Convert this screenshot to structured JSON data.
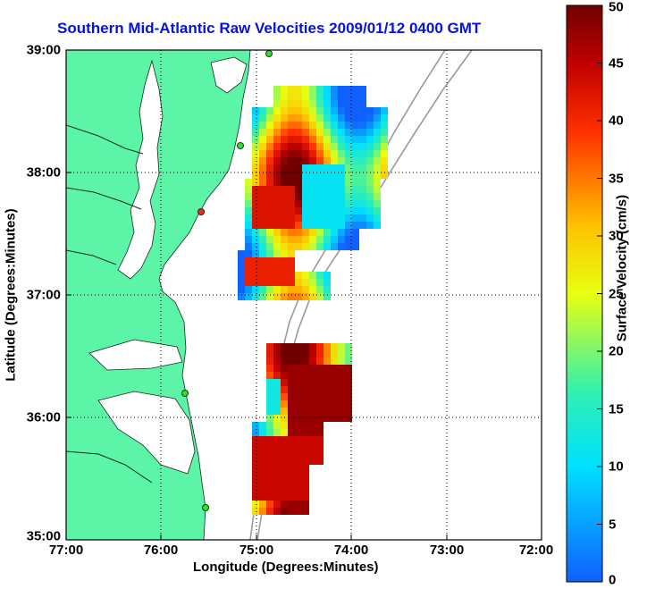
{
  "title": "Southern Mid-Atlantic Raw Velocities 2009/01/12 0400 GMT",
  "x_axis": {
    "label": "Longitude (Degrees:Minutes)",
    "ticks": [
      "77:00",
      "76:00",
      "75:00",
      "74:00",
      "73:00",
      "72:00"
    ],
    "range_deg_west": [
      77,
      72
    ]
  },
  "y_axis": {
    "label": "Latitude (Degrees:Minutes)",
    "ticks": [
      "39:00",
      "38:00",
      "37:00",
      "36:00",
      "35:00"
    ],
    "range_deg_north": [
      35,
      39
    ]
  },
  "colorbar": {
    "label": "Surface Velocity (cm/s)",
    "ticks": [
      "50",
      "45",
      "40",
      "35",
      "30",
      "25",
      "20",
      "15",
      "10",
      "5",
      "0"
    ],
    "range": [
      0,
      50
    ]
  },
  "colors": {
    "land": "#5cf5a8",
    "water": "#ffffff",
    "coast": "#1a2a1a",
    "bathymetry": "#9a9a9a",
    "grid": "#000000",
    "title": "#0a10e0",
    "station_active": "#2fe02f",
    "station_inactive": "#e03030"
  },
  "legend": "none",
  "grid": true,
  "grid_style": "dotted"
}
